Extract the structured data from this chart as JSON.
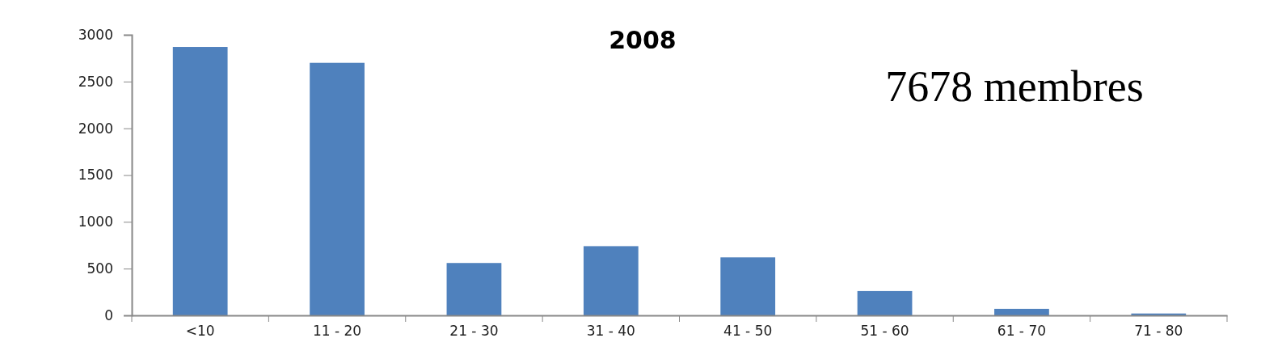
{
  "chart_data": {
    "type": "bar",
    "title": "2008",
    "annotations": [
      "7678 membres"
    ],
    "categories": [
      "<10",
      "11 - 20",
      "21 - 30",
      "31 - 40",
      "41 - 50",
      "51 - 60",
      "61 - 70",
      "71 - 80"
    ],
    "values": [
      2870,
      2700,
      560,
      740,
      620,
      260,
      70,
      20
    ],
    "color": "#4f81bd",
    "ylim": [
      0,
      3000
    ],
    "yticks": [
      0,
      500,
      1000,
      1500,
      2000,
      2500,
      3000
    ],
    "grid": false
  }
}
